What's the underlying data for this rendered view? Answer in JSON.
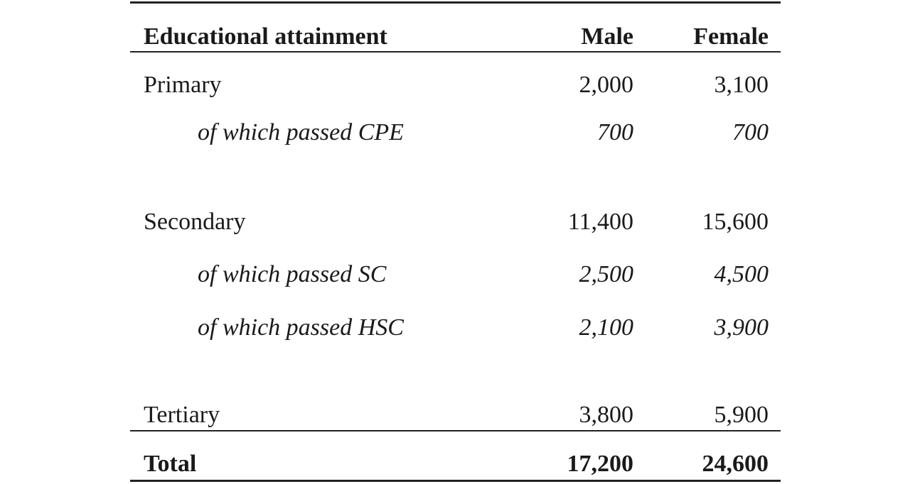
{
  "table": {
    "header": [
      "Educational attainment",
      "Male",
      "Female"
    ],
    "rows": [
      [
        "Primary",
        "2,000",
        "3,100"
      ],
      [
        "of which passed CPE",
        "700",
        "700"
      ],
      [
        "Secondary",
        "11,400",
        "15,600"
      ],
      [
        "of which passed SC",
        "2,500",
        "4,500"
      ],
      [
        "of which passed HSC",
        "2,100",
        "3,900"
      ],
      [
        "Tertiary",
        "3,800",
        "5,900"
      ],
      [
        "Total",
        "17,200",
        "24,600"
      ]
    ]
  }
}
